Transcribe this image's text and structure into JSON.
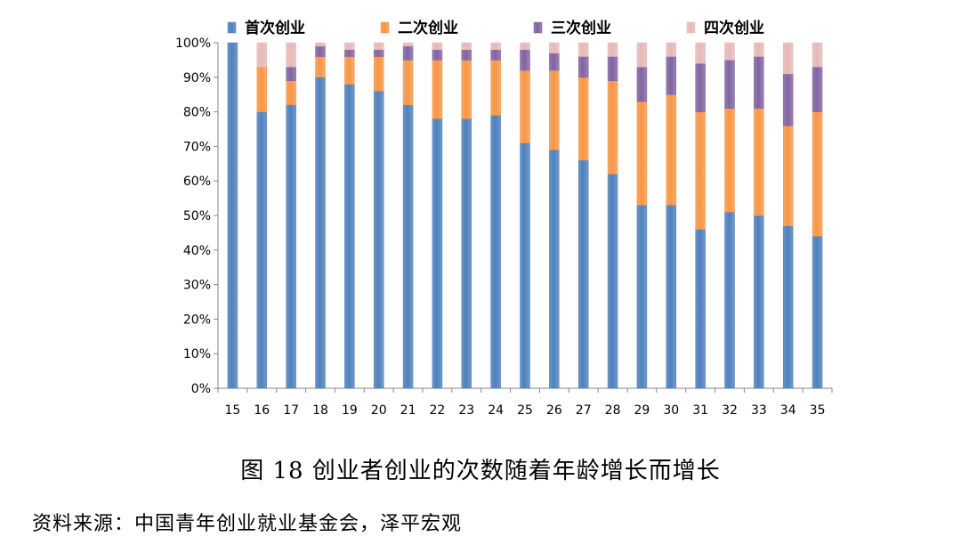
{
  "chart_data": {
    "type": "bar",
    "stacked": true,
    "percent_stacked": true,
    "categories": [
      "15",
      "16",
      "17",
      "18",
      "19",
      "20",
      "21",
      "22",
      "23",
      "24",
      "25",
      "26",
      "27",
      "28",
      "29",
      "30",
      "31",
      "32",
      "33",
      "34",
      "35"
    ],
    "series": [
      {
        "name": "首次创业",
        "color": "#4f81bd",
        "values": [
          100,
          80,
          82,
          90,
          88,
          86,
          82,
          78,
          78,
          79,
          71,
          69,
          66,
          62,
          53,
          53,
          46,
          51,
          50,
          47,
          44
        ]
      },
      {
        "name": "二次创业",
        "color": "#f79646",
        "values": [
          0,
          13,
          7,
          6,
          8,
          10,
          13,
          17,
          17,
          16,
          21,
          23,
          24,
          27,
          30,
          32,
          34,
          30,
          31,
          29,
          36
        ]
      },
      {
        "name": "三次创业",
        "color": "#8064a2",
        "values": [
          0,
          0,
          4,
          3,
          2,
          2,
          4,
          3,
          3,
          3,
          6,
          5,
          6,
          7,
          10,
          11,
          14,
          14,
          15,
          15,
          13
        ]
      },
      {
        "name": "四次创业",
        "color": "#e6b9b8",
        "values": [
          0,
          7,
          7,
          1,
          2,
          2,
          1,
          2,
          2,
          2,
          2,
          3,
          4,
          4,
          7,
          4,
          6,
          5,
          4,
          9,
          7
        ]
      }
    ],
    "ylim": [
      0,
      100
    ],
    "yticks": [
      "0%",
      "10%",
      "20%",
      "30%",
      "40%",
      "50%",
      "60%",
      "70%",
      "80%",
      "90%",
      "100%"
    ],
    "grid": false,
    "legend_position": "top"
  },
  "caption": "图 18  创业者创业的次数随着年龄增长而增长",
  "source": "资料来源：中国青年创业就业基金会，泽平宏观"
}
